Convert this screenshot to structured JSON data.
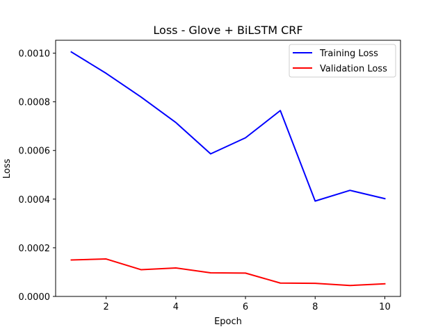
{
  "chart_data": {
    "type": "line",
    "title": "Loss - Glove + BiLSTM CRF",
    "xlabel": "Epoch",
    "ylabel": "Loss",
    "x": [
      1,
      2,
      3,
      4,
      5,
      6,
      7,
      8,
      9,
      10
    ],
    "xlim": [
      0.55,
      10.45
    ],
    "ylim": [
      0.0,
      0.001053
    ],
    "xticks": [
      2,
      4,
      6,
      8,
      10
    ],
    "xtick_labels": [
      "2",
      "4",
      "6",
      "8",
      "10"
    ],
    "yticks": [
      0.0,
      0.0002,
      0.0004,
      0.0006,
      0.0008,
      0.001
    ],
    "ytick_labels": [
      "0.0000",
      "0.0002",
      "0.0004",
      "0.0006",
      "0.0008",
      "0.0010"
    ],
    "grid": false,
    "legend_position": "top-right",
    "series": [
      {
        "name": "Training Loss",
        "color": "#0000ff",
        "values": [
          0.001005,
          0.000917,
          0.00082,
          0.000715,
          0.000586,
          0.000652,
          0.000764,
          0.000392,
          0.000436,
          0.000402
        ]
      },
      {
        "name": "Validation Loss",
        "color": "#ff0000",
        "values": [
          0.00015,
          0.000154,
          0.00011,
          0.000117,
          9.7e-05,
          9.6e-05,
          5.5e-05,
          5.4e-05,
          4.5e-05,
          5.2e-05
        ]
      }
    ]
  }
}
